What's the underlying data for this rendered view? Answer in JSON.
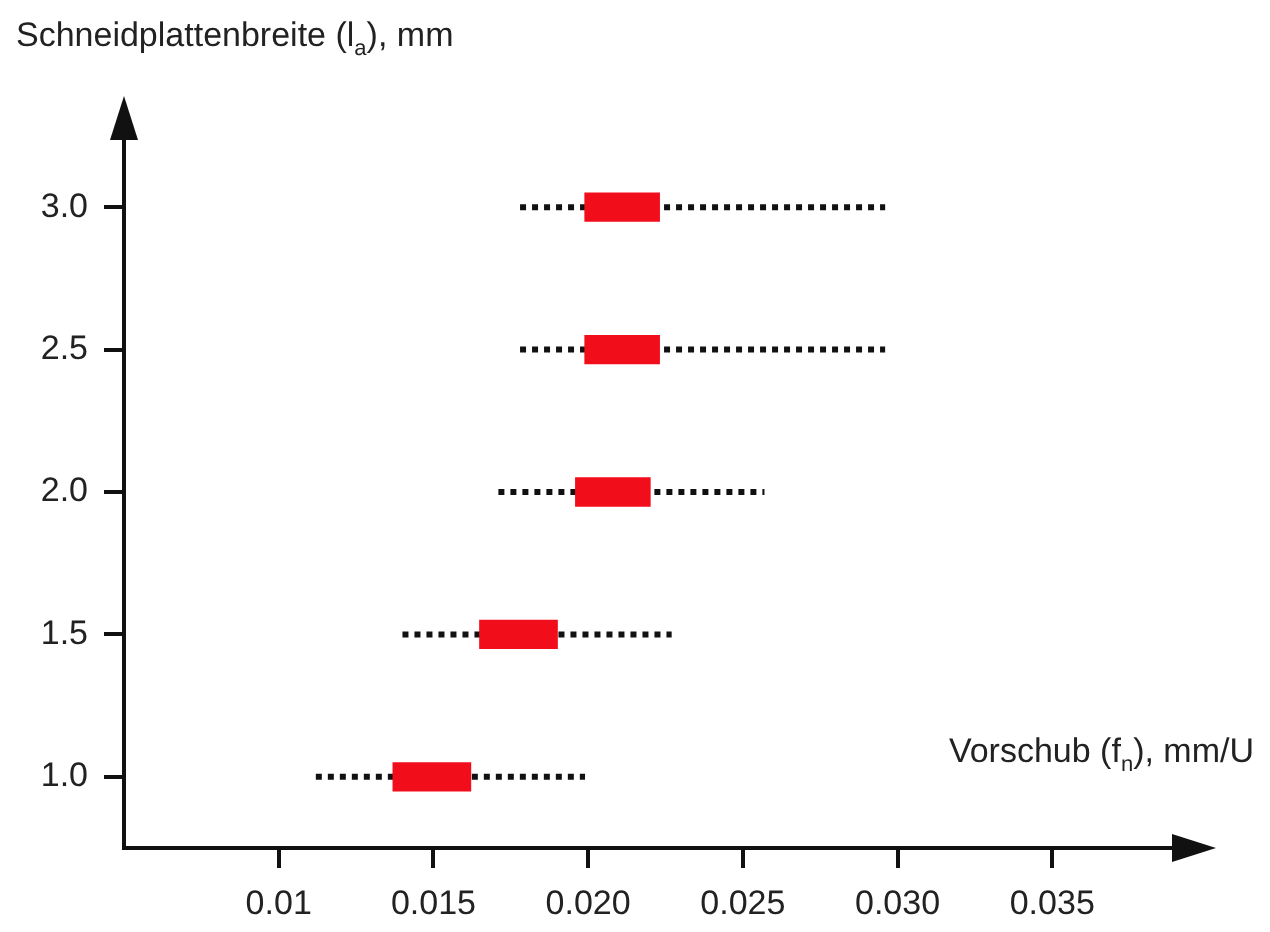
{
  "chart_data": {
    "type": "bar",
    "orientation": "horizontal",
    "xlabel": "Vorschub (f$_{n}$), mm/U",
    "ylabel": "Schneidplattenbreite (l$_{a}$), mm",
    "categories": [
      "3.0",
      "2.5",
      "2.0",
      "1.5",
      "1.0"
    ],
    "base": [
      0.0199,
      0.0199,
      0.0196,
      0.0165,
      0.0137
    ],
    "values": [
      0.0024,
      0.0024,
      0.0024,
      0.0025,
      0.0025
    ],
    "errors": [
      [
        0.0178,
        0.0296
      ],
      [
        0.0178,
        0.0296
      ],
      [
        0.0171,
        0.0257
      ],
      [
        0.014,
        0.0227
      ],
      [
        0.0112,
        0.0199
      ]
    ],
    "color": "#f20d1a",
    "xlim": [
      0.005,
      0.039
    ],
    "xticks": [
      0.01,
      0.015,
      {
        "value": 0.02,
        "label": "0.020"
      },
      0.025,
      {
        "value": 0.03,
        "label": "0.030"
      },
      0.035
    ]
  }
}
